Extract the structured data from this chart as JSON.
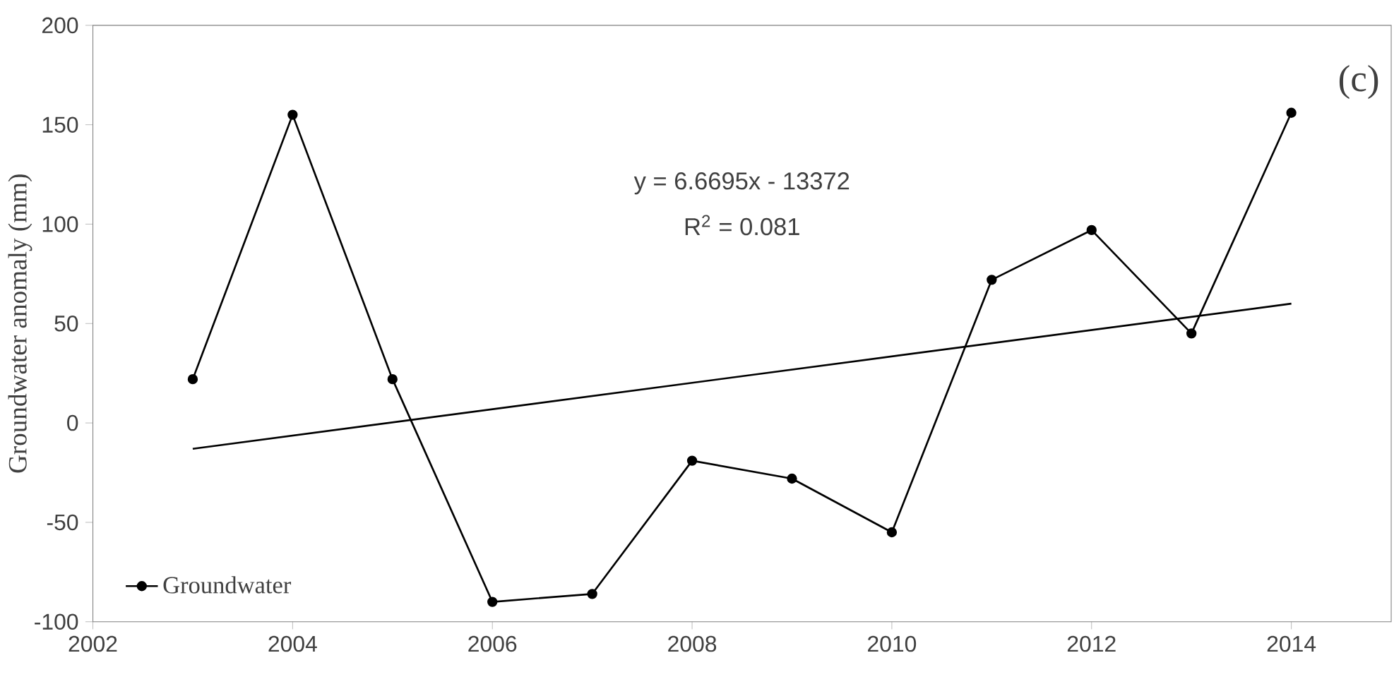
{
  "chart_data": {
    "type": "line",
    "ylabel": "Groundwater anomaly (mm)",
    "x": [
      2003,
      2004,
      2005,
      2006,
      2007,
      2008,
      2009,
      2010,
      2011,
      2012,
      2013,
      2014
    ],
    "series": [
      {
        "name": "Groundwater",
        "color": "#000000",
        "marker": "circle",
        "values": [
          22,
          155,
          22,
          -90,
          -86,
          -19,
          -28,
          -55,
          72,
          97,
          45,
          156
        ]
      },
      {
        "type": "line",
        "color": "#000000",
        "marker": "none",
        "x": [
          2003,
          2014
        ],
        "values": [
          -13,
          60
        ]
      }
    ],
    "xlim": [
      2002,
      2015
    ],
    "xticks": [
      2002,
      2004,
      2006,
      2008,
      2010,
      2012,
      2014
    ],
    "ylim": [
      -100,
      200
    ],
    "yticks": [
      -100,
      -50,
      0,
      50,
      100,
      150,
      200
    ],
    "grid": false,
    "legend": "bottom left",
    "line_style": "solid",
    "annotations": [
      "(c)",
      "y = 6.6695x - 13372",
      "R$^{2}$ = 0.081"
    ]
  }
}
